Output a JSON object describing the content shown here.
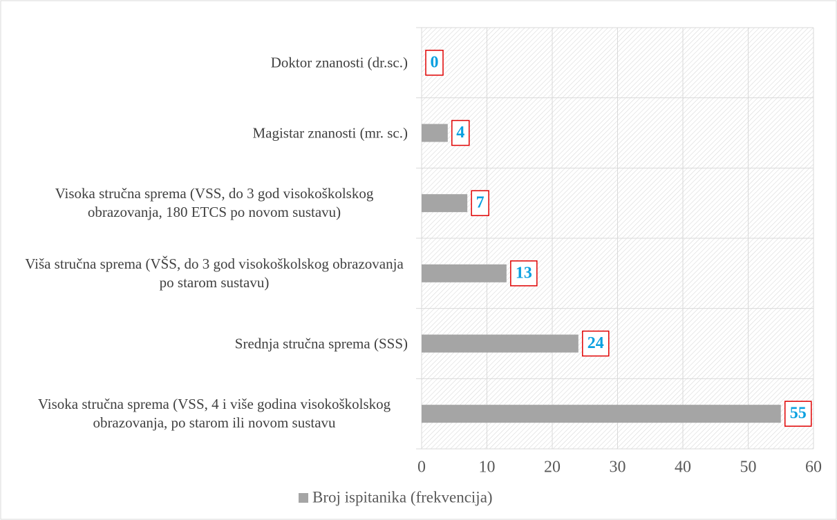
{
  "chart_data": {
    "type": "bar",
    "orientation": "horizontal",
    "categories": [
      "Doktor znanosti (dr.sc.)",
      "Magistar znanosti (mr. sc.)",
      "Visoka stručna sprema (VSS, do 3 god visokoškolskog obrazovanja, 180 ETCS po novom sustavu)",
      "Viša stručna sprema (VŠS, do 3 god visokoškolskog obrazovanja po starom sustavu)",
      "Srednja stručna sprema (SSS)",
      "Visoka stručna sprema (VSS, 4 i više godina visokoškolskog obrazovanja, po starom ili novom sustavu"
    ],
    "series": [
      {
        "name": "Broj ispitanika (frekvencija)",
        "color": "#a5a5a5",
        "values": [
          0,
          4,
          7,
          13,
          24,
          55
        ]
      }
    ],
    "xlim": [
      0,
      60
    ],
    "xticks": [
      0,
      10,
      20,
      30,
      40,
      50,
      60
    ],
    "grid": true,
    "legend": "bottom"
  }
}
